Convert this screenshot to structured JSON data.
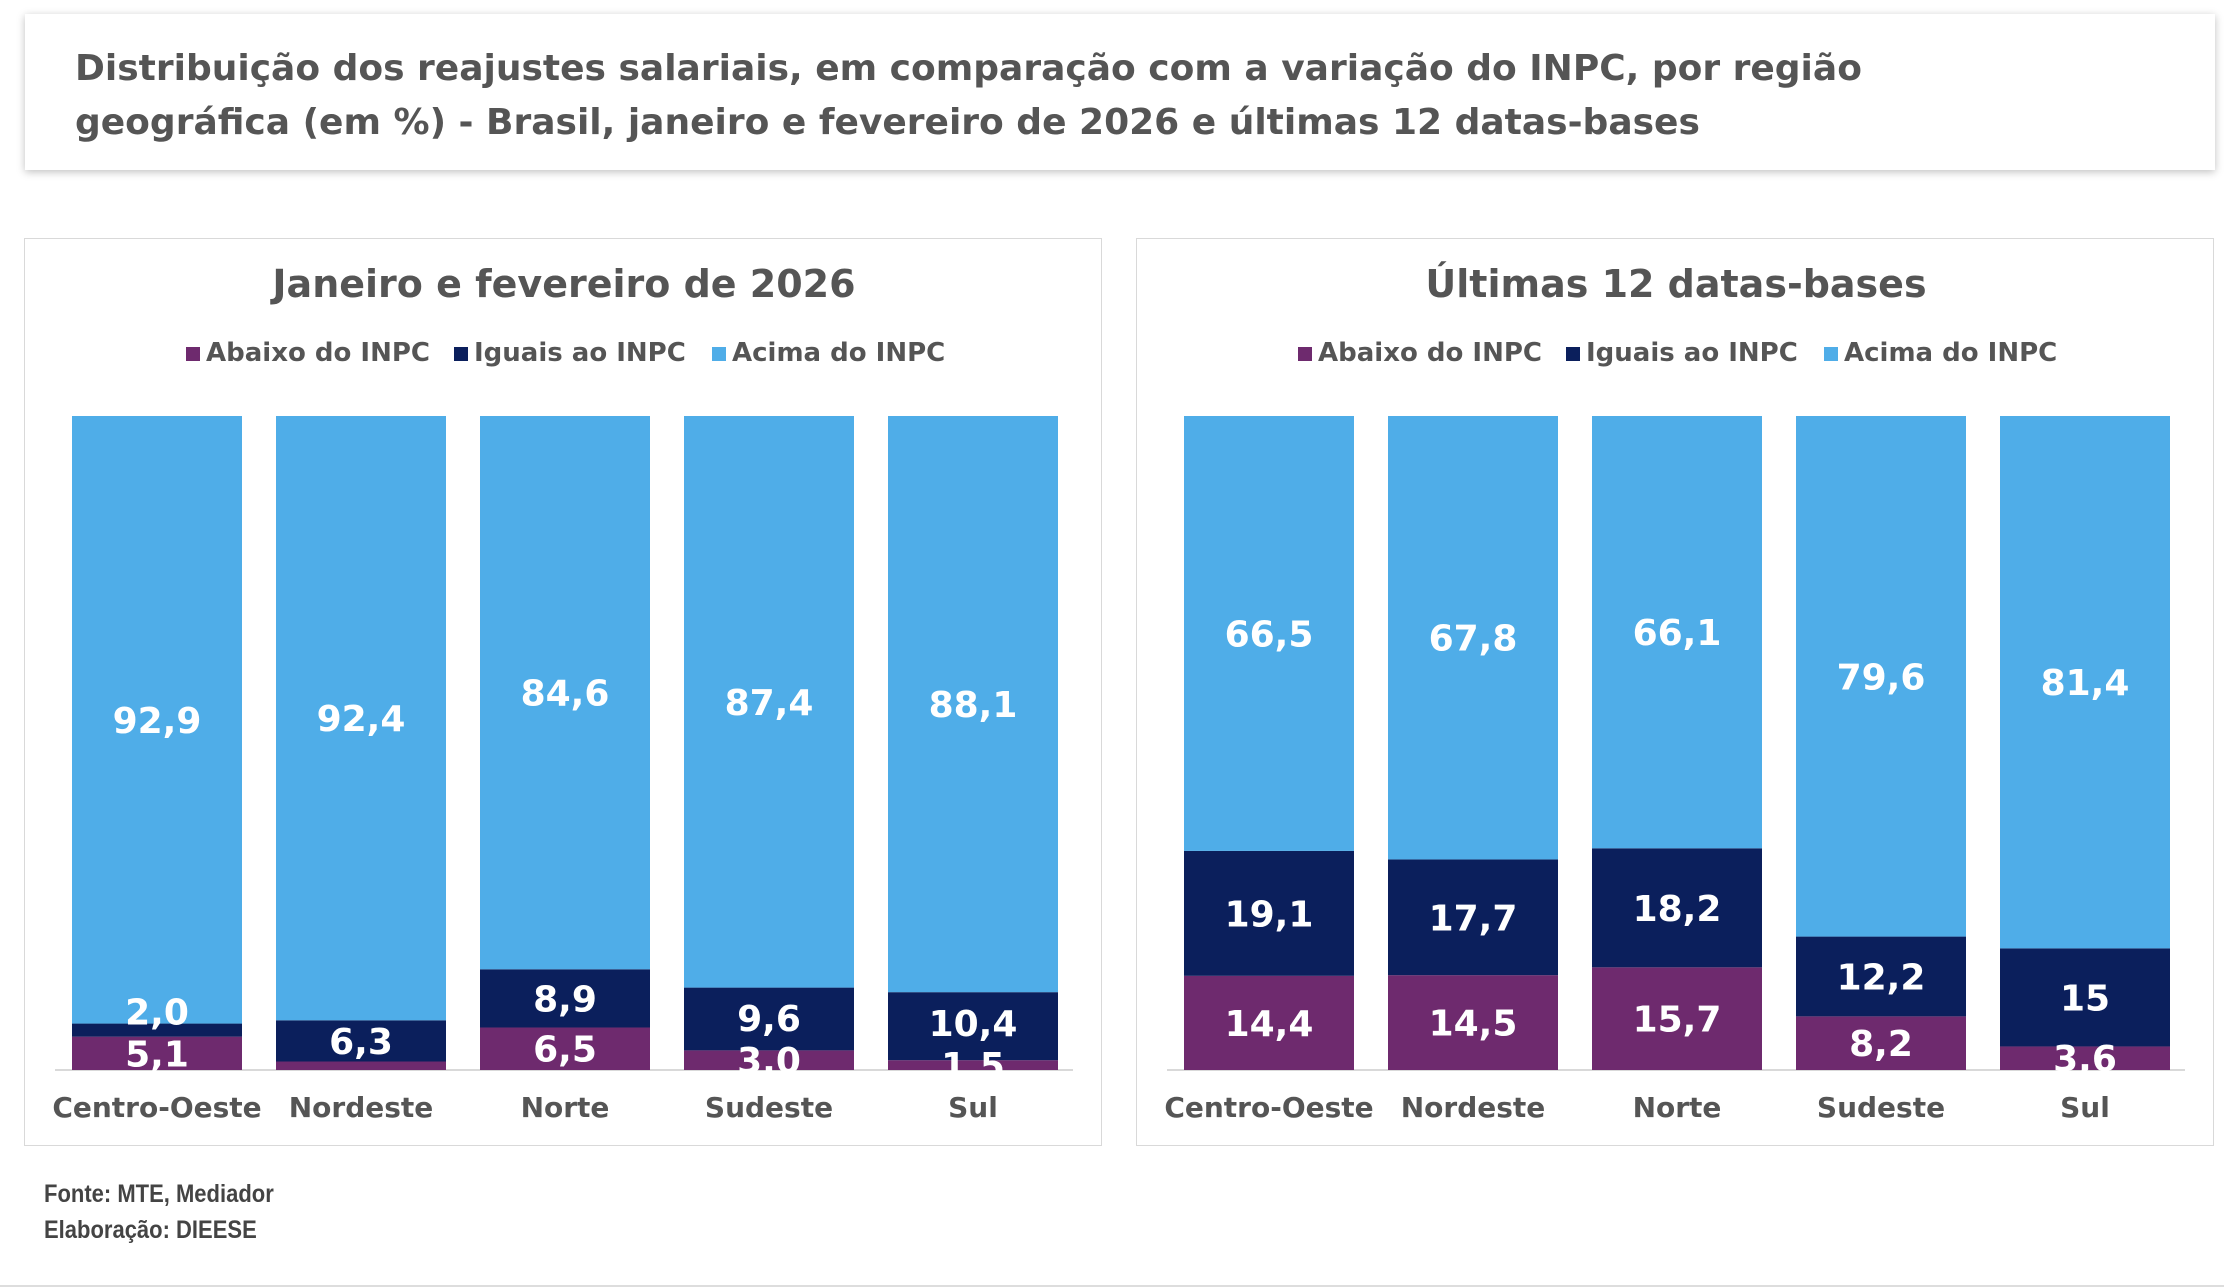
{
  "title": {
    "line1": "Distribuição dos reajustes salariais, em comparação com a variação do INPC, por região",
    "line2": "geográfica (em %) - Brasil, janeiro e fevereiro de 2026 e últimas 12 datas-bases"
  },
  "chart_data": [
    {
      "type": "bar",
      "stacked": true,
      "title": "Janeiro e fevereiro de 2026",
      "categories": [
        "Centro-Oeste",
        "Nordeste",
        "Norte",
        "Sudeste",
        "Sul"
      ],
      "legend_position": "top",
      "ylim": [
        0,
        100
      ],
      "series": [
        {
          "name": "Abaixo do INPC",
          "color": "#6E2A6E",
          "values": [
            5.1,
            1.3,
            6.5,
            3.0,
            1.5
          ],
          "labels": [
            "5,1",
            "",
            "6,5",
            "3,0",
            "1,5"
          ]
        },
        {
          "name": "Iguais ao INPC",
          "color": "#0B1F5C",
          "values": [
            2.0,
            6.3,
            8.9,
            9.6,
            10.4
          ],
          "labels": [
            "2,0",
            "6,3",
            "8,9",
            "9,6",
            "10,4"
          ]
        },
        {
          "name": "Acima do INPC",
          "color": "#4FADE8",
          "values": [
            92.9,
            92.4,
            84.6,
            87.4,
            88.1
          ],
          "labels": [
            "92,9",
            "92,4",
            "84,6",
            "87,4",
            "88,1"
          ]
        }
      ]
    },
    {
      "type": "bar",
      "stacked": true,
      "title": "Últimas 12 datas-bases",
      "categories": [
        "Centro-Oeste",
        "Nordeste",
        "Norte",
        "Sudeste",
        "Sul"
      ],
      "legend_position": "top",
      "ylim": [
        0,
        100
      ],
      "series": [
        {
          "name": "Abaixo do INPC",
          "color": "#6E2A6E",
          "values": [
            14.4,
            14.5,
            15.7,
            8.2,
            3.6
          ],
          "labels": [
            "14,4",
            "14,5",
            "15,7",
            "8,2",
            "3,6"
          ]
        },
        {
          "name": "Iguais ao INPC",
          "color": "#0B1F5C",
          "values": [
            19.1,
            17.7,
            18.2,
            12.2,
            15
          ],
          "labels": [
            "19,1",
            "17,7",
            "18,2",
            "12,2",
            "15"
          ]
        },
        {
          "name": "Acima do INPC",
          "color": "#4FADE8",
          "values": [
            66.5,
            67.8,
            66.1,
            79.6,
            81.4
          ],
          "labels": [
            "66,5",
            "67,8",
            "66,1",
            "79,6",
            "81,4"
          ]
        }
      ]
    }
  ],
  "footer": {
    "source": "Fonte: MTE, Mediador",
    "credit": "Elaboração: DIEESE"
  }
}
